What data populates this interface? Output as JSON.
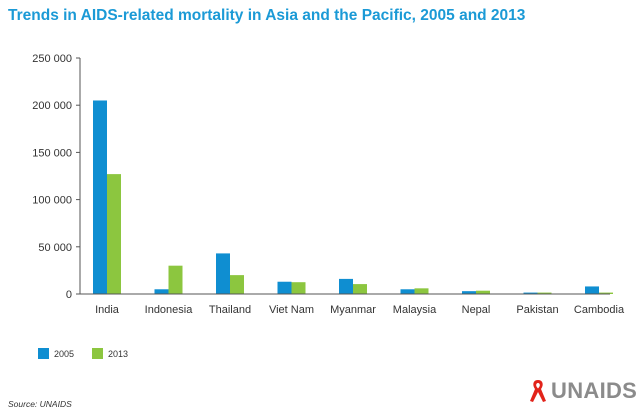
{
  "chart_data": {
    "type": "bar",
    "title": "Trends in AIDS-related mortality in Asia and the Pacific, 2005 and 2013",
    "xlabel": "",
    "ylabel": "",
    "ylim": [
      0,
      250000
    ],
    "yticks": [
      0,
      50000,
      100000,
      150000,
      200000,
      250000
    ],
    "ytick_labels": [
      "0",
      "50 000",
      "100 000",
      "150 000",
      "200 000",
      "250 000"
    ],
    "categories": [
      "India",
      "Indonesia",
      "Thailand",
      "Viet Nam",
      "Myanmar",
      "Malaysia",
      "Nepal",
      "Pakistan",
      "Cambodia"
    ],
    "series": [
      {
        "name": "2005",
        "color": "#0f8ed1",
        "values": [
          205000,
          5000,
          43000,
          13000,
          16000,
          5000,
          3000,
          1500,
          8000
        ]
      },
      {
        "name": "2013",
        "color": "#8cc63f",
        "values": [
          127000,
          30000,
          20000,
          12500,
          10500,
          6000,
          3500,
          1500,
          1500
        ]
      }
    ],
    "legend_position": "bottom-left",
    "grid": false
  },
  "footer": {
    "source": "Source: UNAIDS",
    "logo_text": "UNAIDS"
  },
  "colors": {
    "title": "#1b9ad6",
    "axis": "#555555",
    "logo_red": "#e2231a",
    "logo_gray": "#8b8b8b"
  }
}
